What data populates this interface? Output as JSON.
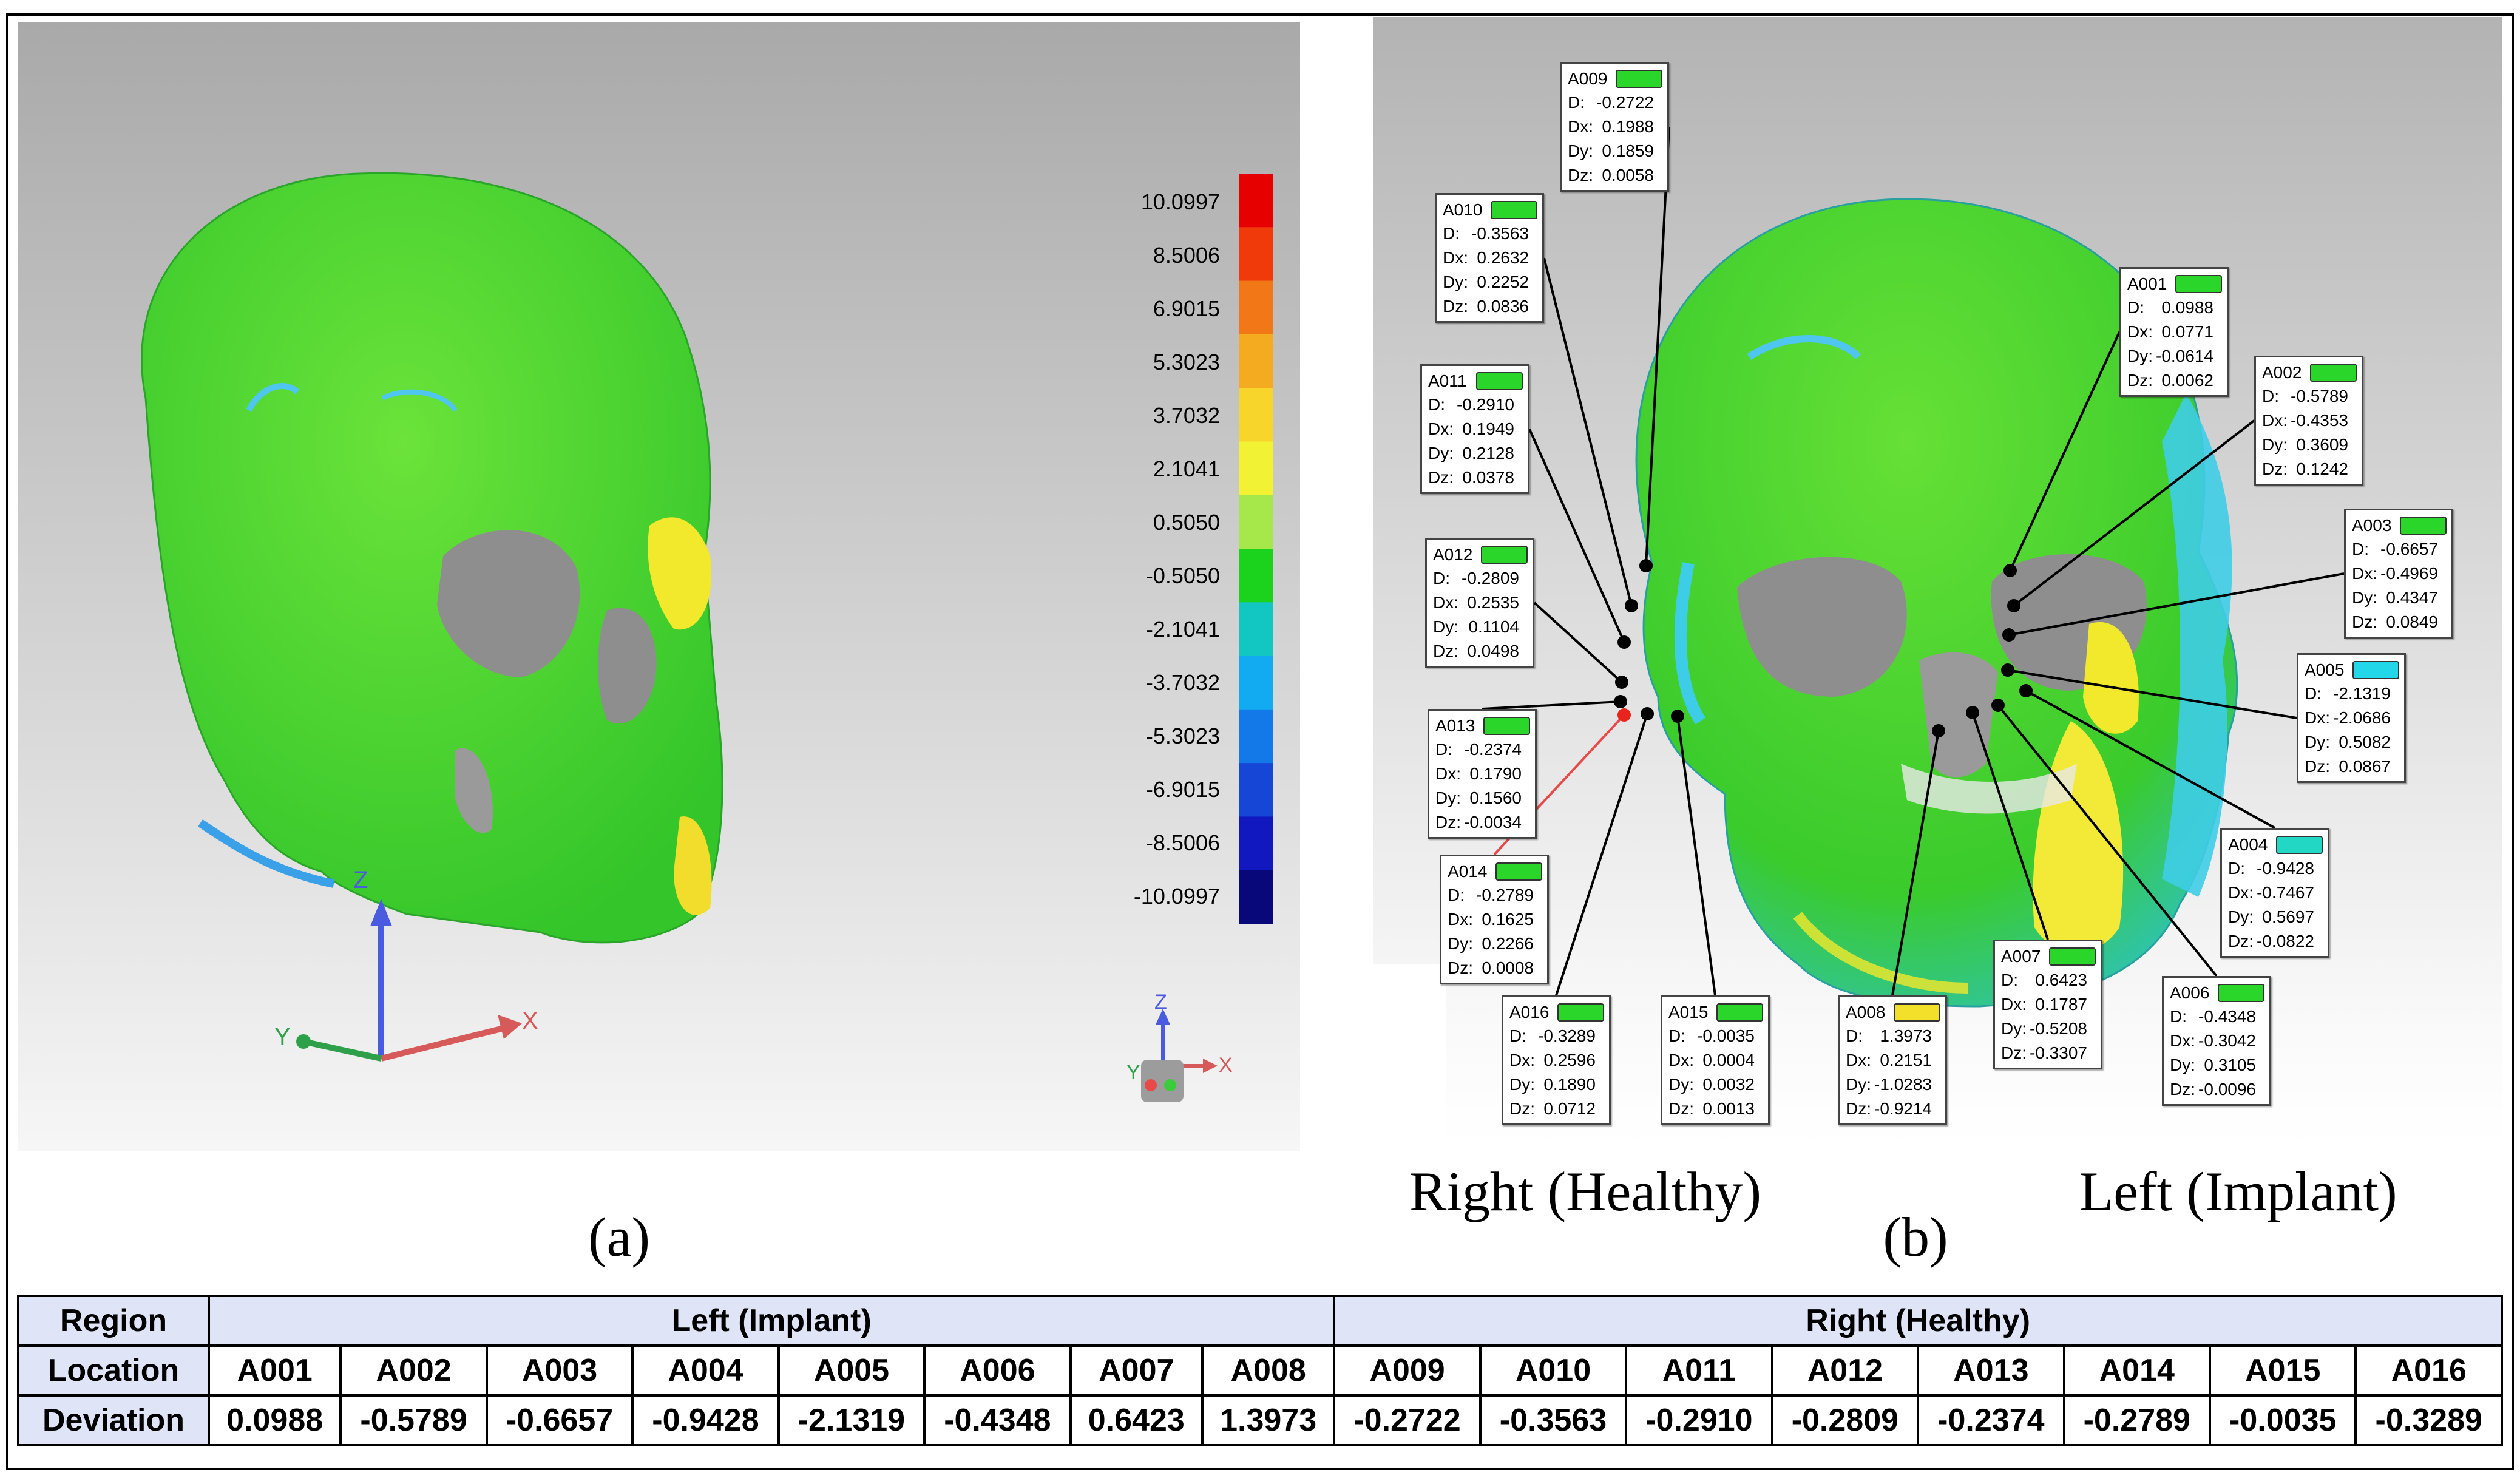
{
  "captions": {
    "a": "(a)",
    "b": "(b)"
  },
  "side_labels": {
    "right": "Right (Healthy)",
    "left": "Left (Implant)"
  },
  "axes_a": {
    "z": "Z",
    "y": "Y",
    "x": "X"
  },
  "axes_mini": {
    "z": "Z",
    "y": "Y",
    "x": "X"
  },
  "colorbar": {
    "labels": [
      "10.0997",
      "8.5006",
      "6.9015",
      "5.3023",
      "3.7032",
      "2.1041",
      "0.5050",
      "-0.5050",
      "-2.1041",
      "-3.7032",
      "-5.3023",
      "-6.9015",
      "-8.5006",
      "-10.0997"
    ],
    "colors": [
      "#e60000",
      "#f03a0a",
      "#f27817",
      "#f4ab1f",
      "#f7d52a",
      "#f2f235",
      "#a6e84a",
      "#1bd21c",
      "#12c7c2",
      "#12aaf0",
      "#1479e8",
      "#1646d6",
      "#1218c0",
      "#08087a"
    ]
  },
  "callouts": [
    {
      "id": "A009",
      "color": "#2bd62b",
      "D": "-0.2722",
      "Dx": "0.1988",
      "Dy": "0.1859",
      "Dz": "0.0058"
    },
    {
      "id": "A010",
      "color": "#2bd62b",
      "D": "-0.3563",
      "Dx": "0.2632",
      "Dy": "0.2252",
      "Dz": "0.0836"
    },
    {
      "id": "A011",
      "color": "#2bd62b",
      "D": "-0.2910",
      "Dx": "0.1949",
      "Dy": "0.2128",
      "Dz": "0.0378"
    },
    {
      "id": "A012",
      "color": "#2bd62b",
      "D": "-0.2809",
      "Dx": "0.2535",
      "Dy": "0.1104",
      "Dz": "0.0498"
    },
    {
      "id": "A013",
      "color": "#2bd62b",
      "D": "-0.2374",
      "Dx": "0.1790",
      "Dy": "0.1560",
      "Dz": "-0.0034"
    },
    {
      "id": "A014",
      "color": "#2bd62b",
      "D": "-0.2789",
      "Dx": "0.1625",
      "Dy": "0.2266",
      "Dz": "0.0008"
    },
    {
      "id": "A016",
      "color": "#2bd62b",
      "D": "-0.3289",
      "Dx": "0.2596",
      "Dy": "0.1890",
      "Dz": "0.0712"
    },
    {
      "id": "A015",
      "color": "#2bd62b",
      "D": "-0.0035",
      "Dx": "0.0004",
      "Dy": "0.0032",
      "Dz": "0.0013"
    },
    {
      "id": "A008",
      "color": "#f2e02a",
      "D": "1.3973",
      "Dx": "0.2151",
      "Dy": "-1.0283",
      "Dz": "-0.9214"
    },
    {
      "id": "A007",
      "color": "#2bd62b",
      "D": "0.6423",
      "Dx": "0.1787",
      "Dy": "-0.5208",
      "Dz": "-0.3307"
    },
    {
      "id": "A006",
      "color": "#2bd62b",
      "D": "-0.4348",
      "Dx": "-0.3042",
      "Dy": "0.3105",
      "Dz": "-0.0096"
    },
    {
      "id": "A004",
      "color": "#22d8c4",
      "D": "-0.9428",
      "Dx": "-0.7467",
      "Dy": "0.5697",
      "Dz": "-0.0822"
    },
    {
      "id": "A005",
      "color": "#22d8e8",
      "D": "-2.1319",
      "Dx": "-2.0686",
      "Dy": "0.5082",
      "Dz": "0.0867"
    },
    {
      "id": "A003",
      "color": "#2bd62b",
      "D": "-0.6657",
      "Dx": "-0.4969",
      "Dy": "0.4347",
      "Dz": "0.0849"
    },
    {
      "id": "A002",
      "color": "#2bd62b",
      "D": "-0.5789",
      "Dx": "-0.4353",
      "Dy": "0.3609",
      "Dz": "0.1242"
    },
    {
      "id": "A001",
      "color": "#2bd62b",
      "D": "0.0988",
      "Dx": "0.0771",
      "Dy": "-0.0614",
      "Dz": "0.0062"
    }
  ],
  "keys": {
    "D": "D:",
    "Dx": "Dx:",
    "Dy": "Dy:",
    "Dz": "Dz:"
  },
  "table": {
    "row_labels": {
      "region": "Region",
      "location": "Location",
      "deviation": "Deviation"
    },
    "groups": {
      "left": "Left (Implant)",
      "right": "Right (Healthy)"
    },
    "locations": [
      "A001",
      "A002",
      "A003",
      "A004",
      "A005",
      "A006",
      "A007",
      "A008",
      "A009",
      "A010",
      "A011",
      "A012",
      "A013",
      "A014",
      "A015",
      "A016"
    ],
    "deviations": [
      "0.0988",
      "-0.5789",
      "-0.6657",
      "-0.9428",
      "-2.1319",
      "-0.4348",
      "0.6423",
      "1.3973",
      "-0.2722",
      "-0.3563",
      "-0.2910",
      "-0.2809",
      "-0.2374",
      "-0.2789",
      "-0.0035",
      "-0.3289"
    ]
  }
}
